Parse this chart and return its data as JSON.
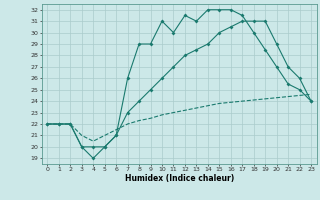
{
  "xlabel": "Humidex (Indice chaleur)",
  "bg_color": "#cce8e8",
  "grid_color": "#aacccc",
  "line_color": "#1a7a6e",
  "xlim": [
    -0.5,
    23.5
  ],
  "ylim": [
    18.5,
    32.5
  ],
  "xticks": [
    0,
    1,
    2,
    3,
    4,
    5,
    6,
    7,
    8,
    9,
    10,
    11,
    12,
    13,
    14,
    15,
    16,
    17,
    18,
    19,
    20,
    21,
    22,
    23
  ],
  "yticks": [
    19,
    20,
    21,
    22,
    23,
    24,
    25,
    26,
    27,
    28,
    29,
    30,
    31,
    32
  ],
  "line1_x": [
    0,
    1,
    2,
    3,
    4,
    5,
    6,
    7,
    8,
    9,
    10,
    11,
    12,
    13,
    14,
    15,
    16,
    17,
    18,
    19,
    20,
    21,
    22,
    23
  ],
  "line1_y": [
    22,
    22,
    22,
    20,
    19,
    20,
    21,
    26,
    29,
    29,
    31,
    30,
    31.5,
    31,
    32,
    32,
    32,
    31.5,
    30,
    28.5,
    27,
    25.5,
    25,
    24
  ],
  "line2_x": [
    0,
    1,
    2,
    3,
    4,
    5,
    6,
    7,
    8,
    9,
    10,
    11,
    12,
    13,
    14,
    15,
    16,
    17,
    18,
    19,
    20,
    21,
    22,
    23
  ],
  "line2_y": [
    22,
    22,
    22,
    20,
    20,
    20,
    21,
    23,
    24,
    25,
    26,
    27,
    28,
    28.5,
    29,
    30,
    30.5,
    31,
    31,
    31,
    29,
    27,
    26,
    24
  ],
  "line3_x": [
    0,
    1,
    2,
    3,
    4,
    5,
    6,
    7,
    8,
    9,
    10,
    11,
    12,
    13,
    14,
    15,
    16,
    17,
    18,
    19,
    20,
    21,
    22,
    23
  ],
  "line3_y": [
    22,
    22,
    22,
    21,
    20.5,
    21,
    21.5,
    22,
    22.3,
    22.5,
    22.8,
    23,
    23.2,
    23.4,
    23.6,
    23.8,
    23.9,
    24,
    24.1,
    24.2,
    24.3,
    24.4,
    24.5,
    24.6
  ]
}
